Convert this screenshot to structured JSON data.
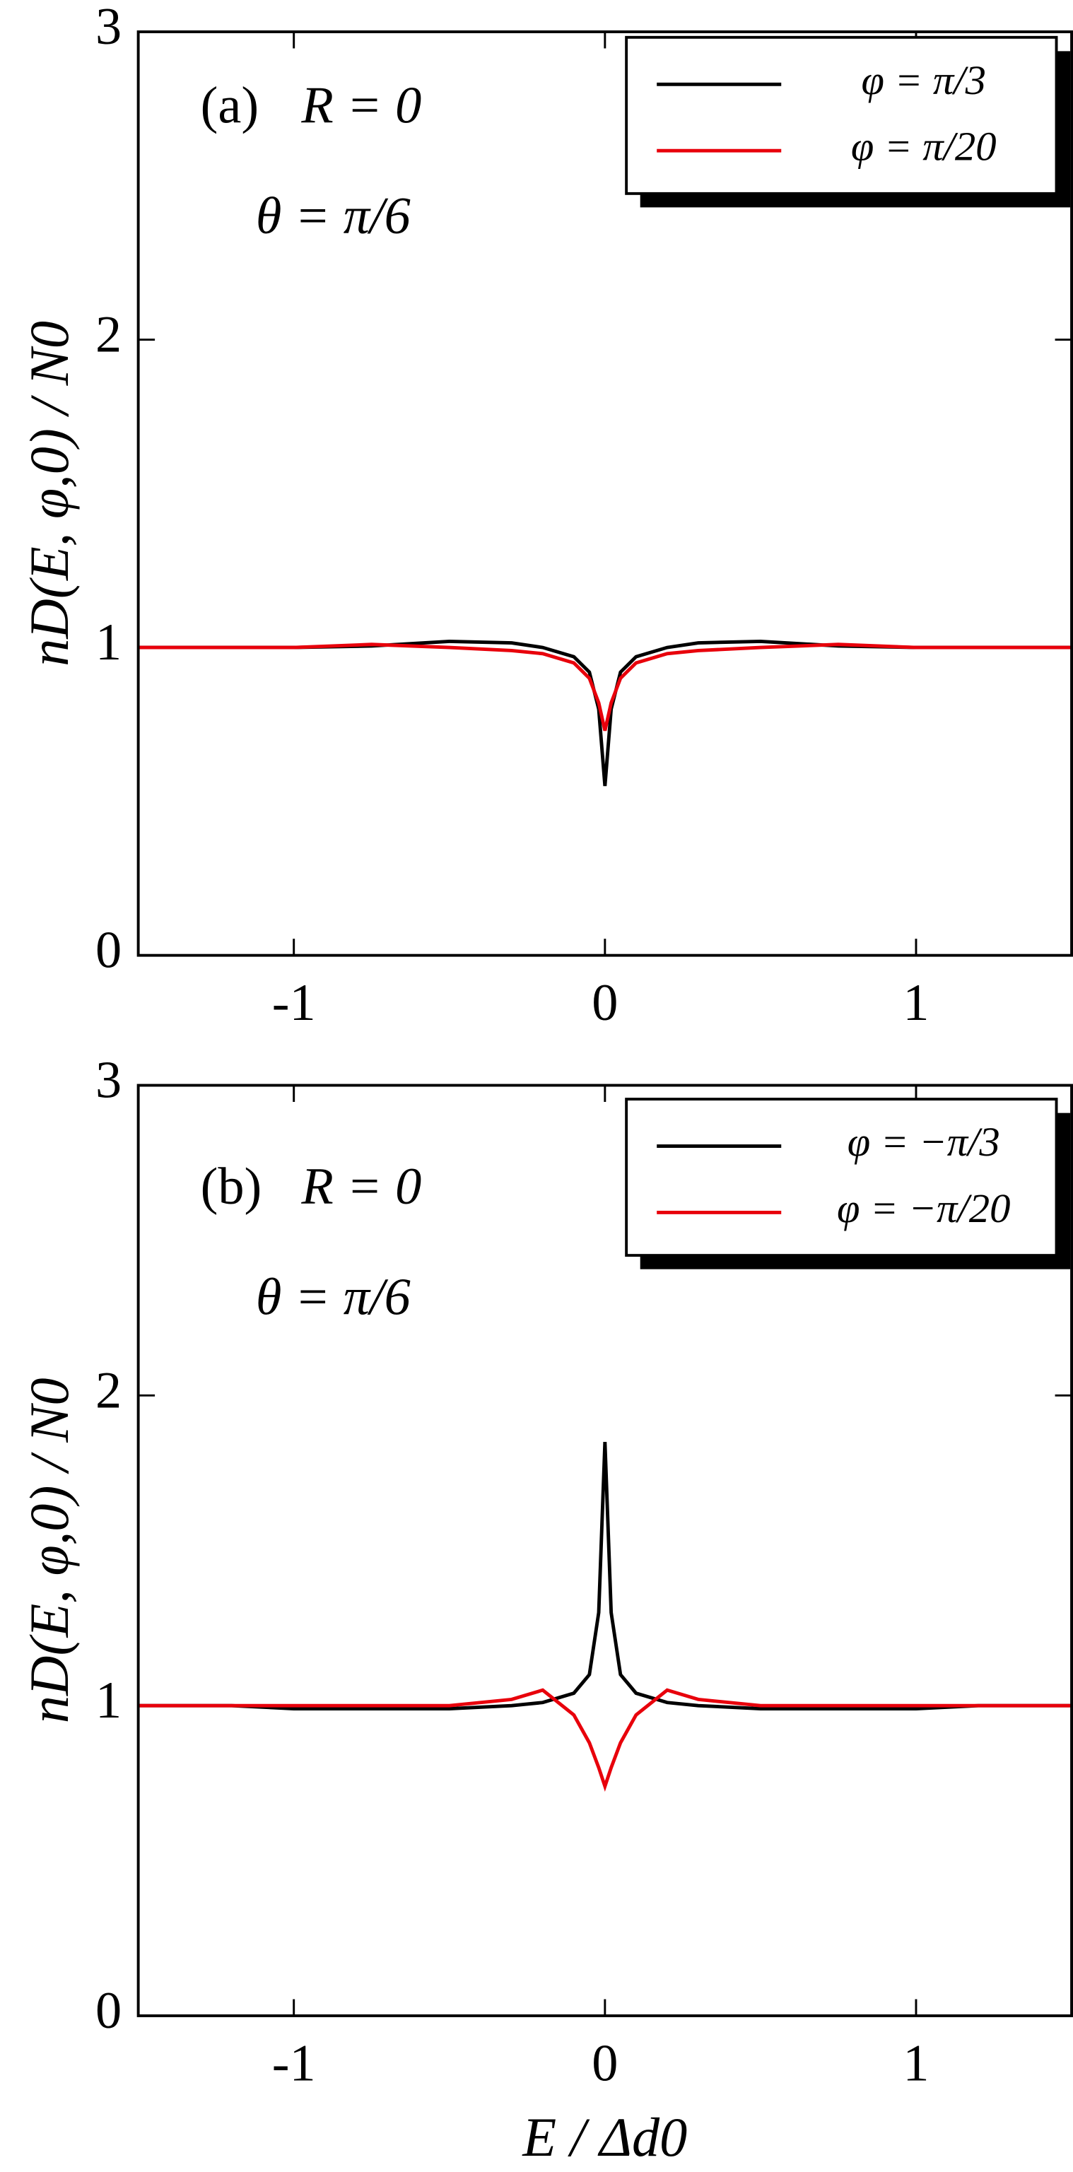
{
  "chart_data": [
    {
      "type": "line",
      "annotations": [
        "(a)",
        "R = 0",
        "θ = π/6"
      ],
      "ylabel": "nD(E, φ,0) / N0",
      "x": [
        -1.5,
        -1.2,
        -1.0,
        -0.75,
        -0.5,
        -0.3,
        -0.2,
        -0.1,
        -0.05,
        -0.02,
        0,
        0.02,
        0.05,
        0.1,
        0.2,
        0.3,
        0.5,
        0.75,
        1.0,
        1.2,
        1.5
      ],
      "series": [
        {
          "name": "φ = π/3",
          "color": "#000000",
          "values": [
            1,
            1,
            1,
            1.005,
            1.02,
            1.015,
            1.0,
            0.97,
            0.92,
            0.8,
            0.55,
            0.8,
            0.92,
            0.97,
            1.0,
            1.015,
            1.02,
            1.005,
            1,
            1,
            1
          ]
        },
        {
          "name": "φ = π/20",
          "color": "#e8000b",
          "values": [
            1,
            1,
            1,
            1.01,
            1.0,
            0.99,
            0.98,
            0.95,
            0.9,
            0.82,
            0.73,
            0.82,
            0.9,
            0.95,
            0.98,
            0.99,
            1.0,
            1.01,
            1,
            1,
            1
          ]
        }
      ],
      "xlim": [
        -1.5,
        1.5
      ],
      "ylim": [
        0,
        3
      ],
      "xticks": [
        -1,
        0,
        1
      ],
      "yticks": [
        0,
        1,
        2,
        3
      ],
      "legend": "upper right"
    },
    {
      "type": "line",
      "annotations": [
        "(b)",
        "R = 0",
        "θ = π/6"
      ],
      "ylabel": "nD(E, φ,0) / N0",
      "xlabel": "E / Δd0",
      "x": [
        -1.5,
        -1.2,
        -1.0,
        -0.75,
        -0.5,
        -0.3,
        -0.2,
        -0.1,
        -0.05,
        -0.02,
        0,
        0.02,
        0.05,
        0.1,
        0.2,
        0.3,
        0.5,
        0.75,
        1.0,
        1.2,
        1.5
      ],
      "series": [
        {
          "name": "φ = −π/3",
          "color": "#000000",
          "values": [
            1,
            1,
            0.99,
            0.99,
            0.99,
            1.0,
            1.01,
            1.04,
            1.1,
            1.3,
            1.85,
            1.3,
            1.1,
            1.04,
            1.01,
            1.0,
            0.99,
            0.99,
            0.99,
            1,
            1
          ]
        },
        {
          "name": "φ = −π/20",
          "color": "#e8000b",
          "values": [
            1,
            1,
            1,
            1,
            1,
            1.02,
            1.05,
            0.97,
            0.88,
            0.8,
            0.74,
            0.8,
            0.88,
            0.97,
            1.05,
            1.02,
            1,
            1,
            1,
            1,
            1
          ]
        }
      ],
      "xlim": [
        -1.5,
        1.5
      ],
      "ylim": [
        0,
        3
      ],
      "xticks": [
        -1,
        0,
        1
      ],
      "yticks": [
        0,
        1,
        2,
        3
      ],
      "legend": "upper right"
    }
  ]
}
